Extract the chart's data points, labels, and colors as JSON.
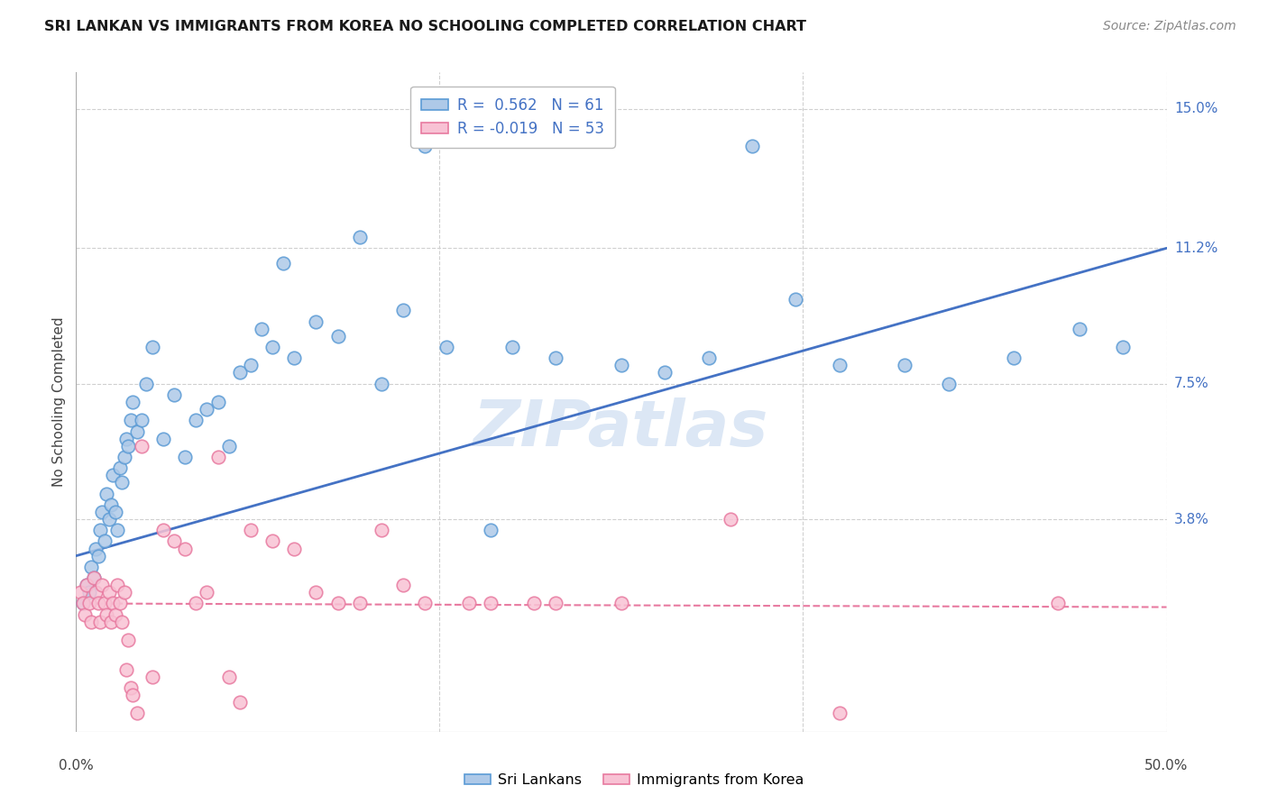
{
  "title": "SRI LANKAN VS IMMIGRANTS FROM KOREA NO SCHOOLING COMPLETED CORRELATION CHART",
  "source": "Source: ZipAtlas.com",
  "ylabel": "No Schooling Completed",
  "ytick_labels": [
    "3.8%",
    "7.5%",
    "11.2%",
    "15.0%"
  ],
  "ytick_values": [
    3.8,
    7.5,
    11.2,
    15.0
  ],
  "xlim": [
    0.0,
    50.0
  ],
  "ylim": [
    -2.0,
    16.0
  ],
  "yaxis_bottom_label": "0.0%",
  "xaxis_left_label": "0.0%",
  "xaxis_right_label": "50.0%",
  "blue_line_x": [
    0.0,
    50.0
  ],
  "blue_line_y": [
    2.8,
    11.2
  ],
  "pink_line_x": [
    0.0,
    50.0
  ],
  "pink_line_y": [
    1.5,
    1.4
  ],
  "blue_scatter": [
    [
      0.3,
      1.5
    ],
    [
      0.5,
      2.0
    ],
    [
      0.6,
      1.8
    ],
    [
      0.7,
      2.5
    ],
    [
      0.8,
      2.2
    ],
    [
      0.9,
      3.0
    ],
    [
      1.0,
      2.8
    ],
    [
      1.1,
      3.5
    ],
    [
      1.2,
      4.0
    ],
    [
      1.3,
      3.2
    ],
    [
      1.4,
      4.5
    ],
    [
      1.5,
      3.8
    ],
    [
      1.6,
      4.2
    ],
    [
      1.7,
      5.0
    ],
    [
      1.8,
      4.0
    ],
    [
      1.9,
      3.5
    ],
    [
      2.0,
      5.2
    ],
    [
      2.1,
      4.8
    ],
    [
      2.2,
      5.5
    ],
    [
      2.3,
      6.0
    ],
    [
      2.4,
      5.8
    ],
    [
      2.5,
      6.5
    ],
    [
      2.6,
      7.0
    ],
    [
      2.8,
      6.2
    ],
    [
      3.0,
      6.5
    ],
    [
      3.2,
      7.5
    ],
    [
      3.5,
      8.5
    ],
    [
      4.0,
      6.0
    ],
    [
      4.5,
      7.2
    ],
    [
      5.0,
      5.5
    ],
    [
      5.5,
      6.5
    ],
    [
      6.0,
      6.8
    ],
    [
      6.5,
      7.0
    ],
    [
      7.0,
      5.8
    ],
    [
      7.5,
      7.8
    ],
    [
      8.0,
      8.0
    ],
    [
      8.5,
      9.0
    ],
    [
      9.0,
      8.5
    ],
    [
      9.5,
      10.8
    ],
    [
      10.0,
      8.2
    ],
    [
      11.0,
      9.2
    ],
    [
      12.0,
      8.8
    ],
    [
      13.0,
      11.5
    ],
    [
      14.0,
      7.5
    ],
    [
      15.0,
      9.5
    ],
    [
      16.0,
      14.0
    ],
    [
      17.0,
      8.5
    ],
    [
      19.0,
      3.5
    ],
    [
      20.0,
      8.5
    ],
    [
      22.0,
      8.2
    ],
    [
      25.0,
      8.0
    ],
    [
      27.0,
      7.8
    ],
    [
      29.0,
      8.2
    ],
    [
      31.0,
      14.0
    ],
    [
      33.0,
      9.8
    ],
    [
      35.0,
      8.0
    ],
    [
      38.0,
      8.0
    ],
    [
      40.0,
      7.5
    ],
    [
      43.0,
      8.2
    ],
    [
      46.0,
      9.0
    ],
    [
      48.0,
      8.5
    ]
  ],
  "pink_scatter": [
    [
      0.2,
      1.8
    ],
    [
      0.3,
      1.5
    ],
    [
      0.4,
      1.2
    ],
    [
      0.5,
      2.0
    ],
    [
      0.6,
      1.5
    ],
    [
      0.7,
      1.0
    ],
    [
      0.8,
      2.2
    ],
    [
      0.9,
      1.8
    ],
    [
      1.0,
      1.5
    ],
    [
      1.1,
      1.0
    ],
    [
      1.2,
      2.0
    ],
    [
      1.3,
      1.5
    ],
    [
      1.4,
      1.2
    ],
    [
      1.5,
      1.8
    ],
    [
      1.6,
      1.0
    ],
    [
      1.7,
      1.5
    ],
    [
      1.8,
      1.2
    ],
    [
      1.9,
      2.0
    ],
    [
      2.0,
      1.5
    ],
    [
      2.1,
      1.0
    ],
    [
      2.2,
      1.8
    ],
    [
      2.3,
      -0.3
    ],
    [
      2.4,
      0.5
    ],
    [
      2.5,
      -0.8
    ],
    [
      2.6,
      -1.0
    ],
    [
      2.8,
      -1.5
    ],
    [
      3.0,
      5.8
    ],
    [
      3.5,
      -0.5
    ],
    [
      4.0,
      3.5
    ],
    [
      4.5,
      3.2
    ],
    [
      5.0,
      3.0
    ],
    [
      5.5,
      1.5
    ],
    [
      6.0,
      1.8
    ],
    [
      6.5,
      5.5
    ],
    [
      7.0,
      -0.5
    ],
    [
      7.5,
      -1.2
    ],
    [
      8.0,
      3.5
    ],
    [
      9.0,
      3.2
    ],
    [
      10.0,
      3.0
    ],
    [
      11.0,
      1.8
    ],
    [
      12.0,
      1.5
    ],
    [
      13.0,
      1.5
    ],
    [
      14.0,
      3.5
    ],
    [
      15.0,
      2.0
    ],
    [
      16.0,
      1.5
    ],
    [
      18.0,
      1.5
    ],
    [
      19.0,
      1.5
    ],
    [
      21.0,
      1.5
    ],
    [
      22.0,
      1.5
    ],
    [
      25.0,
      1.5
    ],
    [
      30.0,
      3.8
    ],
    [
      35.0,
      -1.5
    ],
    [
      45.0,
      1.5
    ]
  ],
  "blue_dot_color": "#aec9e8",
  "blue_dot_edge": "#5b9bd5",
  "pink_dot_color": "#f8c2d4",
  "pink_dot_edge": "#e87aa0",
  "blue_line_color": "#4472c4",
  "pink_line_color": "#e87aa0",
  "grid_color": "#d0d0d0",
  "bg_color": "#ffffff",
  "watermark_text": "ZIPatlas",
  "watermark_color": "#c5d8ef",
  "legend_blue_label1": "R = ",
  "legend_blue_r": "0.562",
  "legend_blue_n_label": "N = ",
  "legend_blue_n": "61",
  "legend_pink_label1": "R = ",
  "legend_pink_r": "-0.019",
  "legend_pink_n_label": "N = ",
  "legend_pink_n": "53"
}
